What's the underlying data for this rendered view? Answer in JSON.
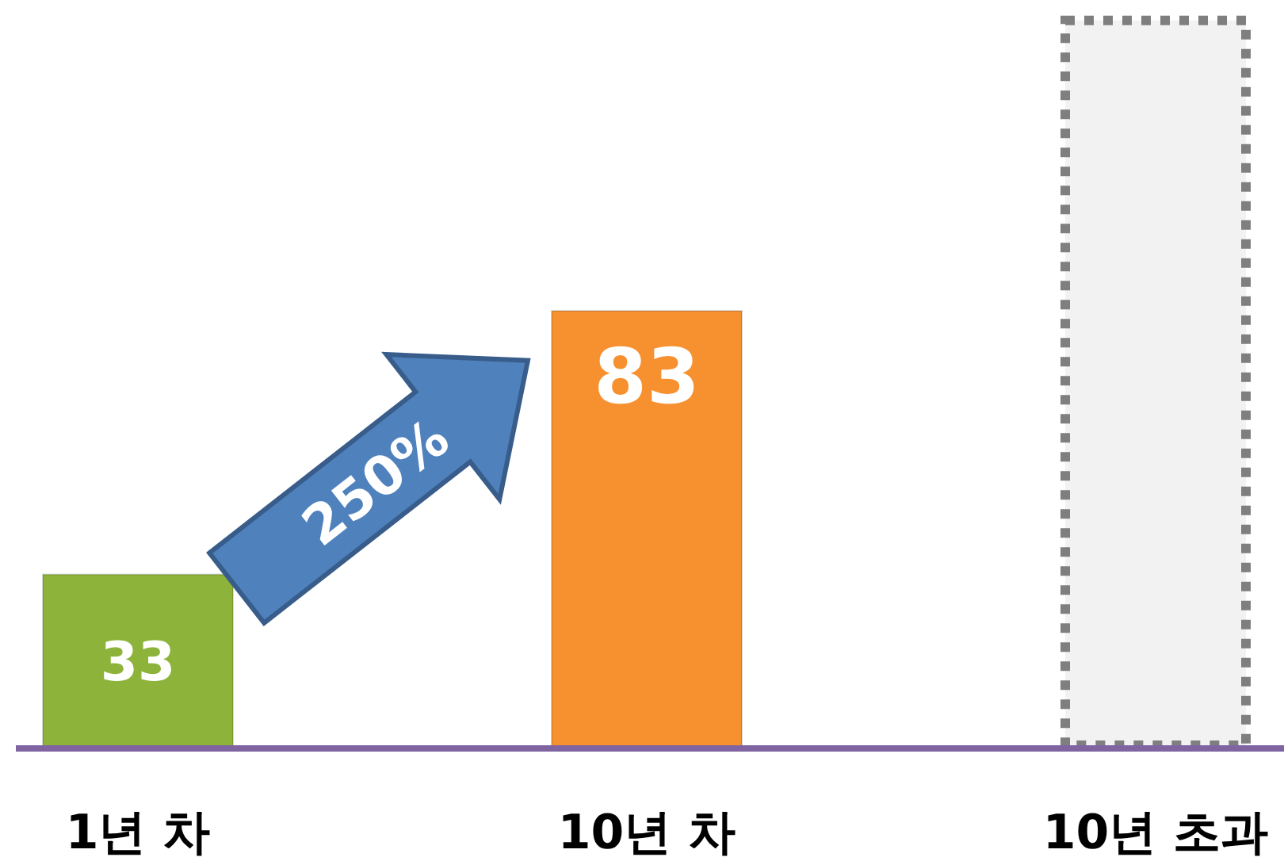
{
  "chart_data": {
    "type": "bar",
    "categories": [
      "1년 차",
      "10년 차",
      "10년 초과"
    ],
    "values": [
      33,
      83,
      139
    ],
    "value_labels": [
      "33",
      "83",
      null
    ],
    "colors": [
      "#8db33a",
      "#f7902f",
      "#f2f2f2"
    ],
    "annotations": [
      "250%"
    ]
  }
}
